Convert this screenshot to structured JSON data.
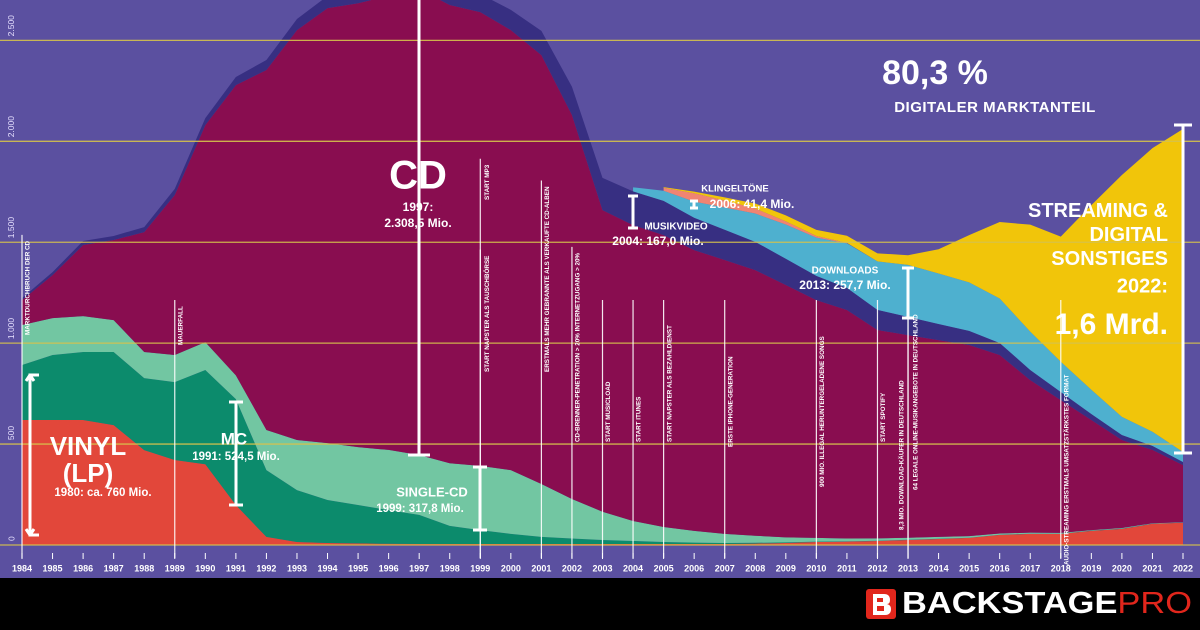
{
  "chart_data": {
    "type": "stacked_area",
    "headline": "80,3 %",
    "subheadline": "DIGITALER MARKTANTEIL",
    "background": "#5b50a0",
    "x": [
      1984,
      1985,
      1986,
      1987,
      1988,
      1989,
      1990,
      1991,
      1992,
      1993,
      1994,
      1995,
      1996,
      1997,
      1998,
      1999,
      2000,
      2001,
      2002,
      2003,
      2004,
      2005,
      2006,
      2007,
      2008,
      2009,
      2010,
      2011,
      2012,
      2013,
      2014,
      2015,
      2016,
      2017,
      2018,
      2019,
      2020,
      2021,
      2022
    ],
    "xlim": [
      1984,
      2022
    ],
    "ylim": [
      0,
      2700
    ],
    "yticks": [
      0,
      500,
      {
        "value": 1000,
        "label": "1.000"
      },
      {
        "value": 1500,
        "label": "1.500"
      },
      {
        "value": 2000,
        "label": "2.000"
      },
      {
        "value": 2500,
        "label": "2.500"
      }
    ],
    "grid": true,
    "grid_color": "#d6c24c",
    "series": [
      {
        "name": "VINYL (LP)",
        "color": "#e2473a",
        "label": "1980: ca. 760 Mio.",
        "values": [
          619,
          619,
          619,
          594,
          470,
          421,
          400,
          198,
          40,
          15,
          10,
          8,
          6,
          5,
          5,
          5,
          5,
          5,
          5,
          5,
          5,
          5,
          5,
          5,
          7,
          10,
          15,
          17,
          20,
          25,
          30,
          35,
          50,
          55,
          55,
          70,
          80,
          105,
          110
        ]
      },
      {
        "name": "MC",
        "color": "#0c8b6c",
        "label": "1991: 524,5 Mio.",
        "values": [
          273,
          322,
          337,
          362,
          357,
          386,
          467,
          524.5,
          331,
          257,
          213,
          190,
          167,
          144,
          90,
          69,
          50,
          35,
          27,
          20,
          15,
          10,
          7,
          5,
          4,
          3,
          2,
          1,
          1,
          1,
          1,
          1,
          1,
          1,
          1,
          1,
          1,
          1,
          1
        ]
      },
      {
        "name": "SINGLE-CD",
        "color": "#72c6a2",
        "label": "1999: 317,8 Mio.",
        "values": [
          198,
          183,
          178,
          158,
          129,
          134,
          138,
          118,
          199,
          248,
          282,
          287,
          298,
          297,
          310,
          317.8,
          316,
          262,
          196,
          140,
          99,
          74,
          58,
          45,
          35,
          25,
          18,
          14,
          12,
          10,
          9,
          8,
          6,
          5,
          4,
          3,
          3,
          2,
          2
        ]
      },
      {
        "name": "CD",
        "color": "#890d50",
        "label": "1997: 2.308,5 Mio.",
        "values": [
          123,
          213,
          352,
          397,
          594,
          793,
          1075,
          1438,
          1783,
          2031,
          2155,
          2199,
          2250,
          2308.5,
          2270,
          2248,
          2180,
          2125,
          1902,
          1494,
          1466,
          1446,
          1391,
          1357,
          1316,
          1250,
          1178,
          1132,
          1032,
          1004,
          975,
          947,
          884,
          756,
          658,
          545,
          436,
          363,
          283
        ]
      },
      {
        "name": "MUSIKVIDEO",
        "color": "#372f82",
        "label": "2004: 167,0 Mio.",
        "values": [
          10,
          15,
          20,
          20,
          25,
          30,
          35,
          40,
          50,
          55,
          60,
          65,
          70,
          75,
          80,
          90,
          100,
          120,
          140,
          160,
          167,
          170,
          160,
          150,
          140,
          130,
          120,
          110,
          100,
          90,
          80,
          70,
          60,
          50,
          40,
          30,
          25,
          20,
          15
        ]
      },
      {
        "name": "DOWNLOADS",
        "color": "#4eb0cf",
        "label": "2013: 257,7 Mio.",
        "values": [
          null,
          null,
          null,
          null,
          null,
          null,
          null,
          null,
          null,
          null,
          null,
          null,
          null,
          null,
          null,
          null,
          null,
          null,
          null,
          null,
          20,
          50,
          80,
          110,
          140,
          170,
          190,
          220,
          240,
          257.7,
          250,
          240,
          220,
          190,
          150,
          120,
          90,
          70,
          50
        ]
      },
      {
        "name": "KLINGELTÖNE",
        "color": "#f08472",
        "label": "2006: 41,4 Mio.",
        "values": [
          null,
          null,
          null,
          null,
          null,
          null,
          null,
          null,
          null,
          null,
          null,
          null,
          null,
          null,
          null,
          null,
          null,
          null,
          null,
          null,
          null,
          15,
          41.4,
          35,
          25,
          15,
          8,
          3,
          null,
          null,
          null,
          null,
          null,
          null,
          null,
          null,
          null,
          null,
          null
        ]
      },
      {
        "name": "STREAMING & DIGITAL SONSTIGES",
        "color": "#f1c50a",
        "label": "2022:",
        "highlight": "1,6 Mrd.",
        "values": [
          null,
          null,
          null,
          null,
          null,
          null,
          null,
          null,
          null,
          null,
          null,
          null,
          null,
          null,
          null,
          null,
          null,
          null,
          null,
          null,
          null,
          3,
          8,
          15,
          25,
          30,
          30,
          35,
          40,
          48,
          120,
          234,
          379,
          530,
          620,
          915,
          1198,
          1405,
          1600
        ]
      }
    ],
    "events": [
      {
        "year": 1984,
        "text": "MARKTDURCHBRUCH DER CD"
      },
      {
        "year": 1989,
        "text": "MAUERFALL"
      },
      {
        "year": 1999,
        "text": "START MP3"
      },
      {
        "year": 1999,
        "text": "START NAPSTER ALS TAUSCHBÖRSE"
      },
      {
        "year": 2001,
        "text": "ERSTMALS MEHR GEBRANNTE ALS VERKAUFTE CD-ALBEN"
      },
      {
        "year": 2002,
        "text": "CD-BRENNER-PENETRATION > 20% INTERNETZUGANG > 20%"
      },
      {
        "year": 2003,
        "text": "START MUSICLOAD"
      },
      {
        "year": 2004,
        "text": "START ITUNES"
      },
      {
        "year": 2005,
        "text": "START NAPSTER ALS BEZAHLDIENST"
      },
      {
        "year": 2007,
        "text": "ERSTE IPHONE-GENERATION"
      },
      {
        "year": 2010,
        "text": "900 MIO. ILLEGAL HERUNTERGELADENE SONGS"
      },
      {
        "year": 2012,
        "text": "START SPOTIFY"
      },
      {
        "year": 2013,
        "text": "8,3 MIO. DOWNLOAD-KÄUFER IN DEUTSCHLAND"
      },
      {
        "year": 2013,
        "text": "64 LEGALE ONLINE-MUSIKANGEBOTE IN DEUTSCHLAND"
      },
      {
        "year": 2018,
        "text": "AUDIO-STREAMING ERSTMALS UMSATZSTÄRKSTES FORMAT"
      }
    ]
  },
  "footer": {
    "brand": "BACKSTAGE",
    "brand_suffix": "PRO"
  }
}
